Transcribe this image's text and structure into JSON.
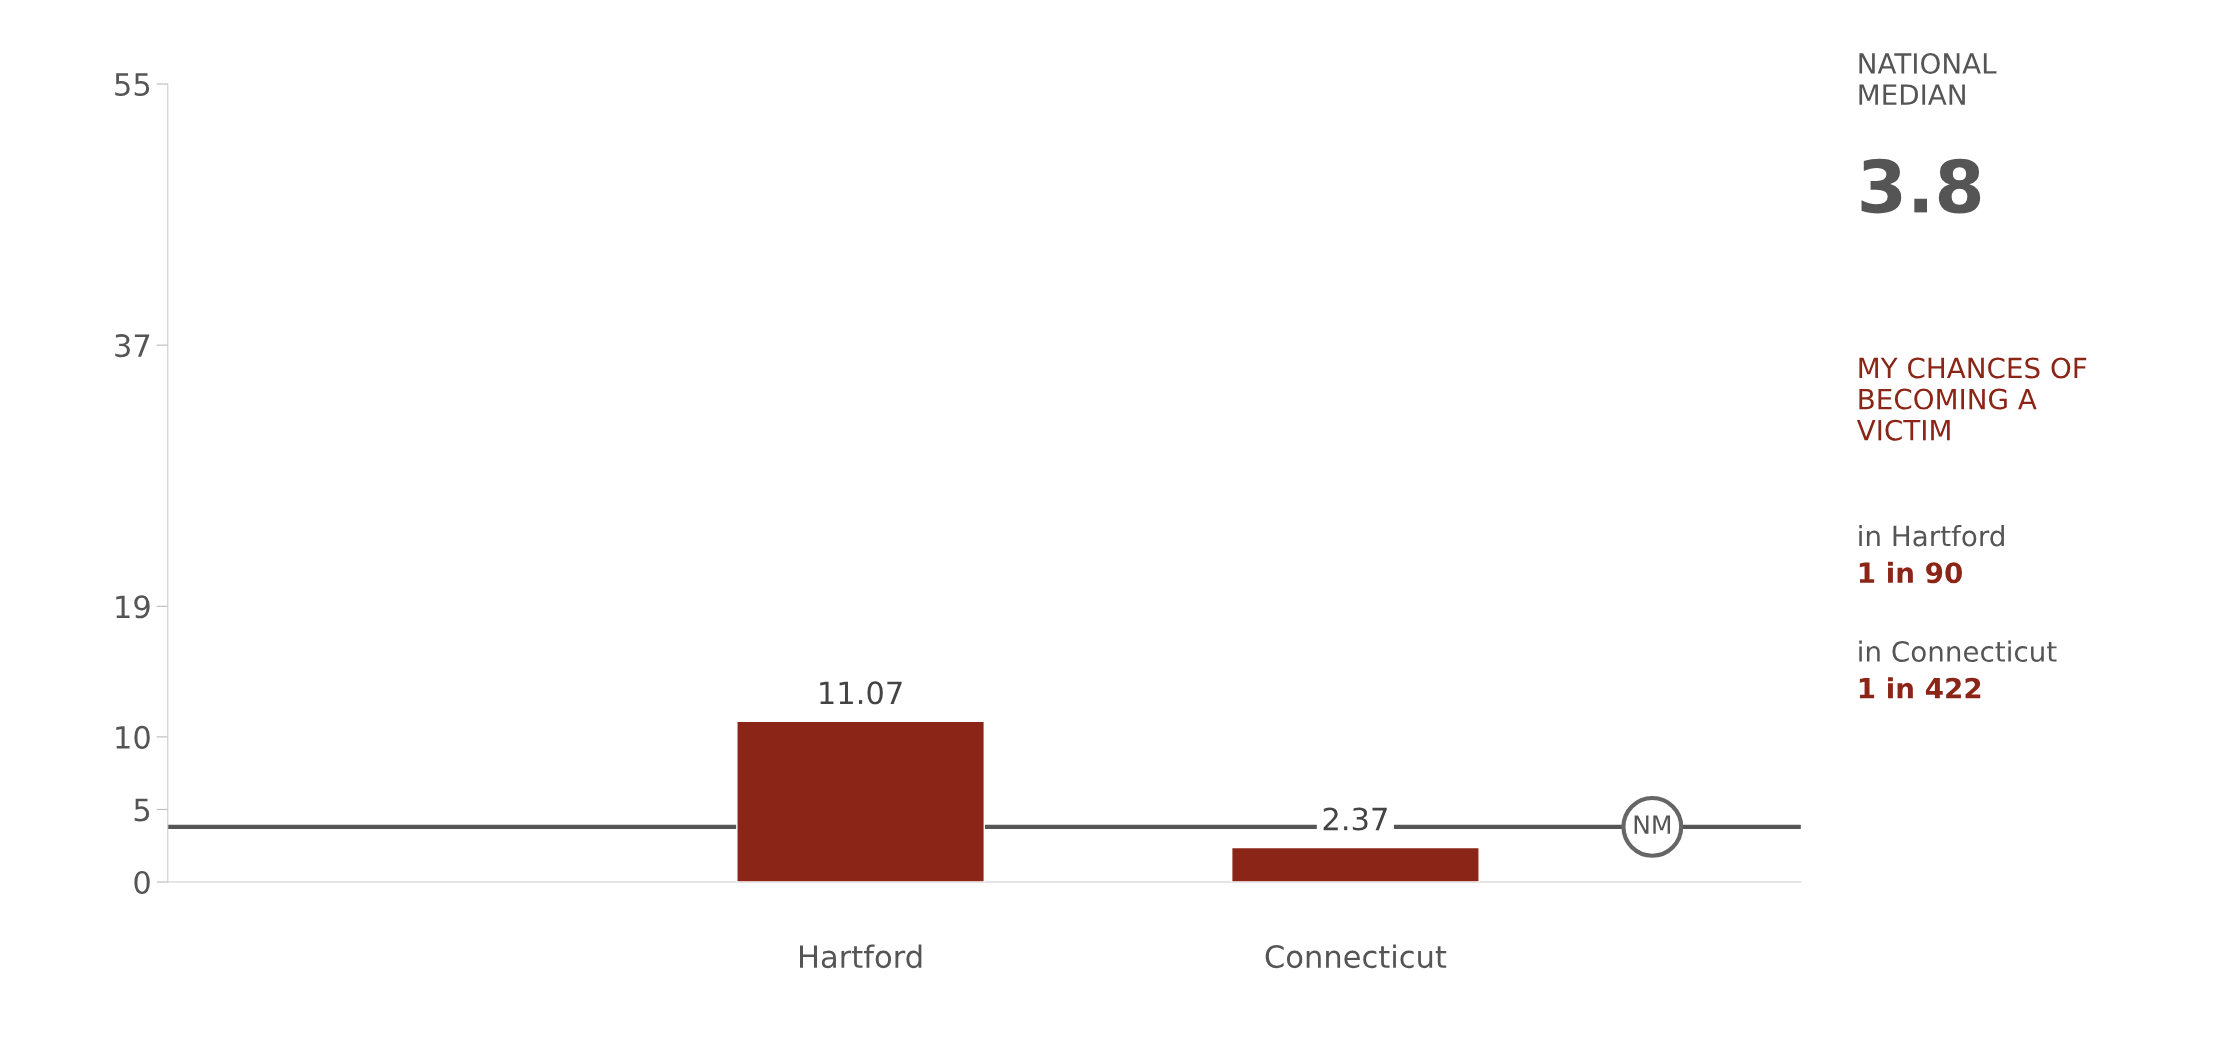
{
  "chart_data": [
    {
      "type": "bar",
      "categories": [
        "Hartford",
        "Connecticut"
      ],
      "values": [
        11.07,
        2.37
      ],
      "color": "#8b2517",
      "data_labels": true,
      "ylim": [
        0,
        55
      ],
      "yticks": [
        0,
        5,
        10,
        19,
        37,
        55
      ],
      "ref_lines": [
        {
          "axis": "y",
          "value": 3.8,
          "label": "NM",
          "color": "#555555"
        }
      ],
      "annotations": [
        "NATIONAL\nMEDIAN",
        "3.8",
        "MY CHANCES OF\nBECOMING A\nVICTIM",
        "in Hartford",
        "1 in 90",
        "in Connecticut",
        "1 in 422"
      ],
      "grid": false
    }
  ]
}
